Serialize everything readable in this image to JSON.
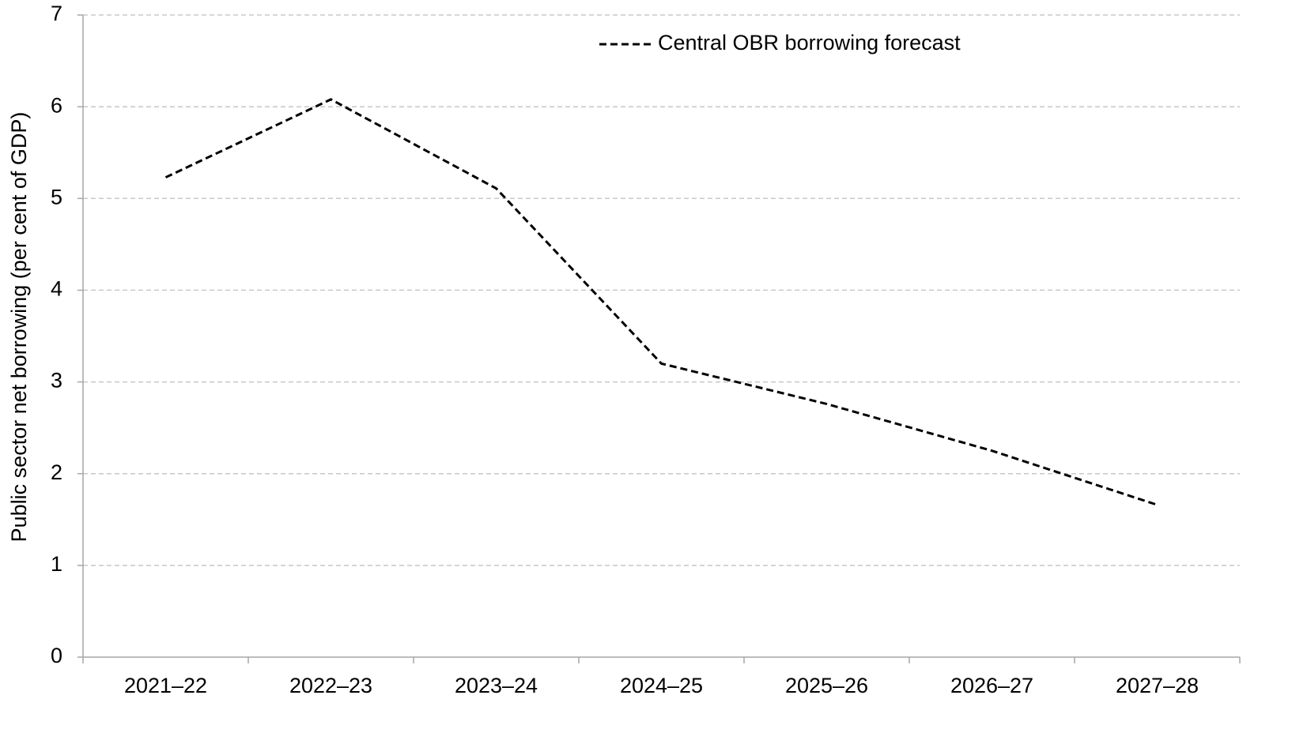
{
  "chart_data": {
    "type": "line",
    "y_label": "Public sector net borrowing (per cent of GDP)",
    "categories": [
      "2021–22",
      "2022–23",
      "2023–24",
      "2024–25",
      "2025–26",
      "2026–27",
      "2027–28"
    ],
    "series": [
      {
        "name": "Central OBR borrowing forecast",
        "color": "#000000",
        "dashed": true,
        "values": [
          5.23,
          6.08,
          5.11,
          3.2,
          2.76,
          2.25,
          1.66
        ]
      }
    ],
    "ylim": [
      0,
      7
    ],
    "yticks": [
      0,
      1,
      2,
      3,
      4,
      5,
      6,
      7
    ],
    "grid": true,
    "legend": "top-right"
  }
}
